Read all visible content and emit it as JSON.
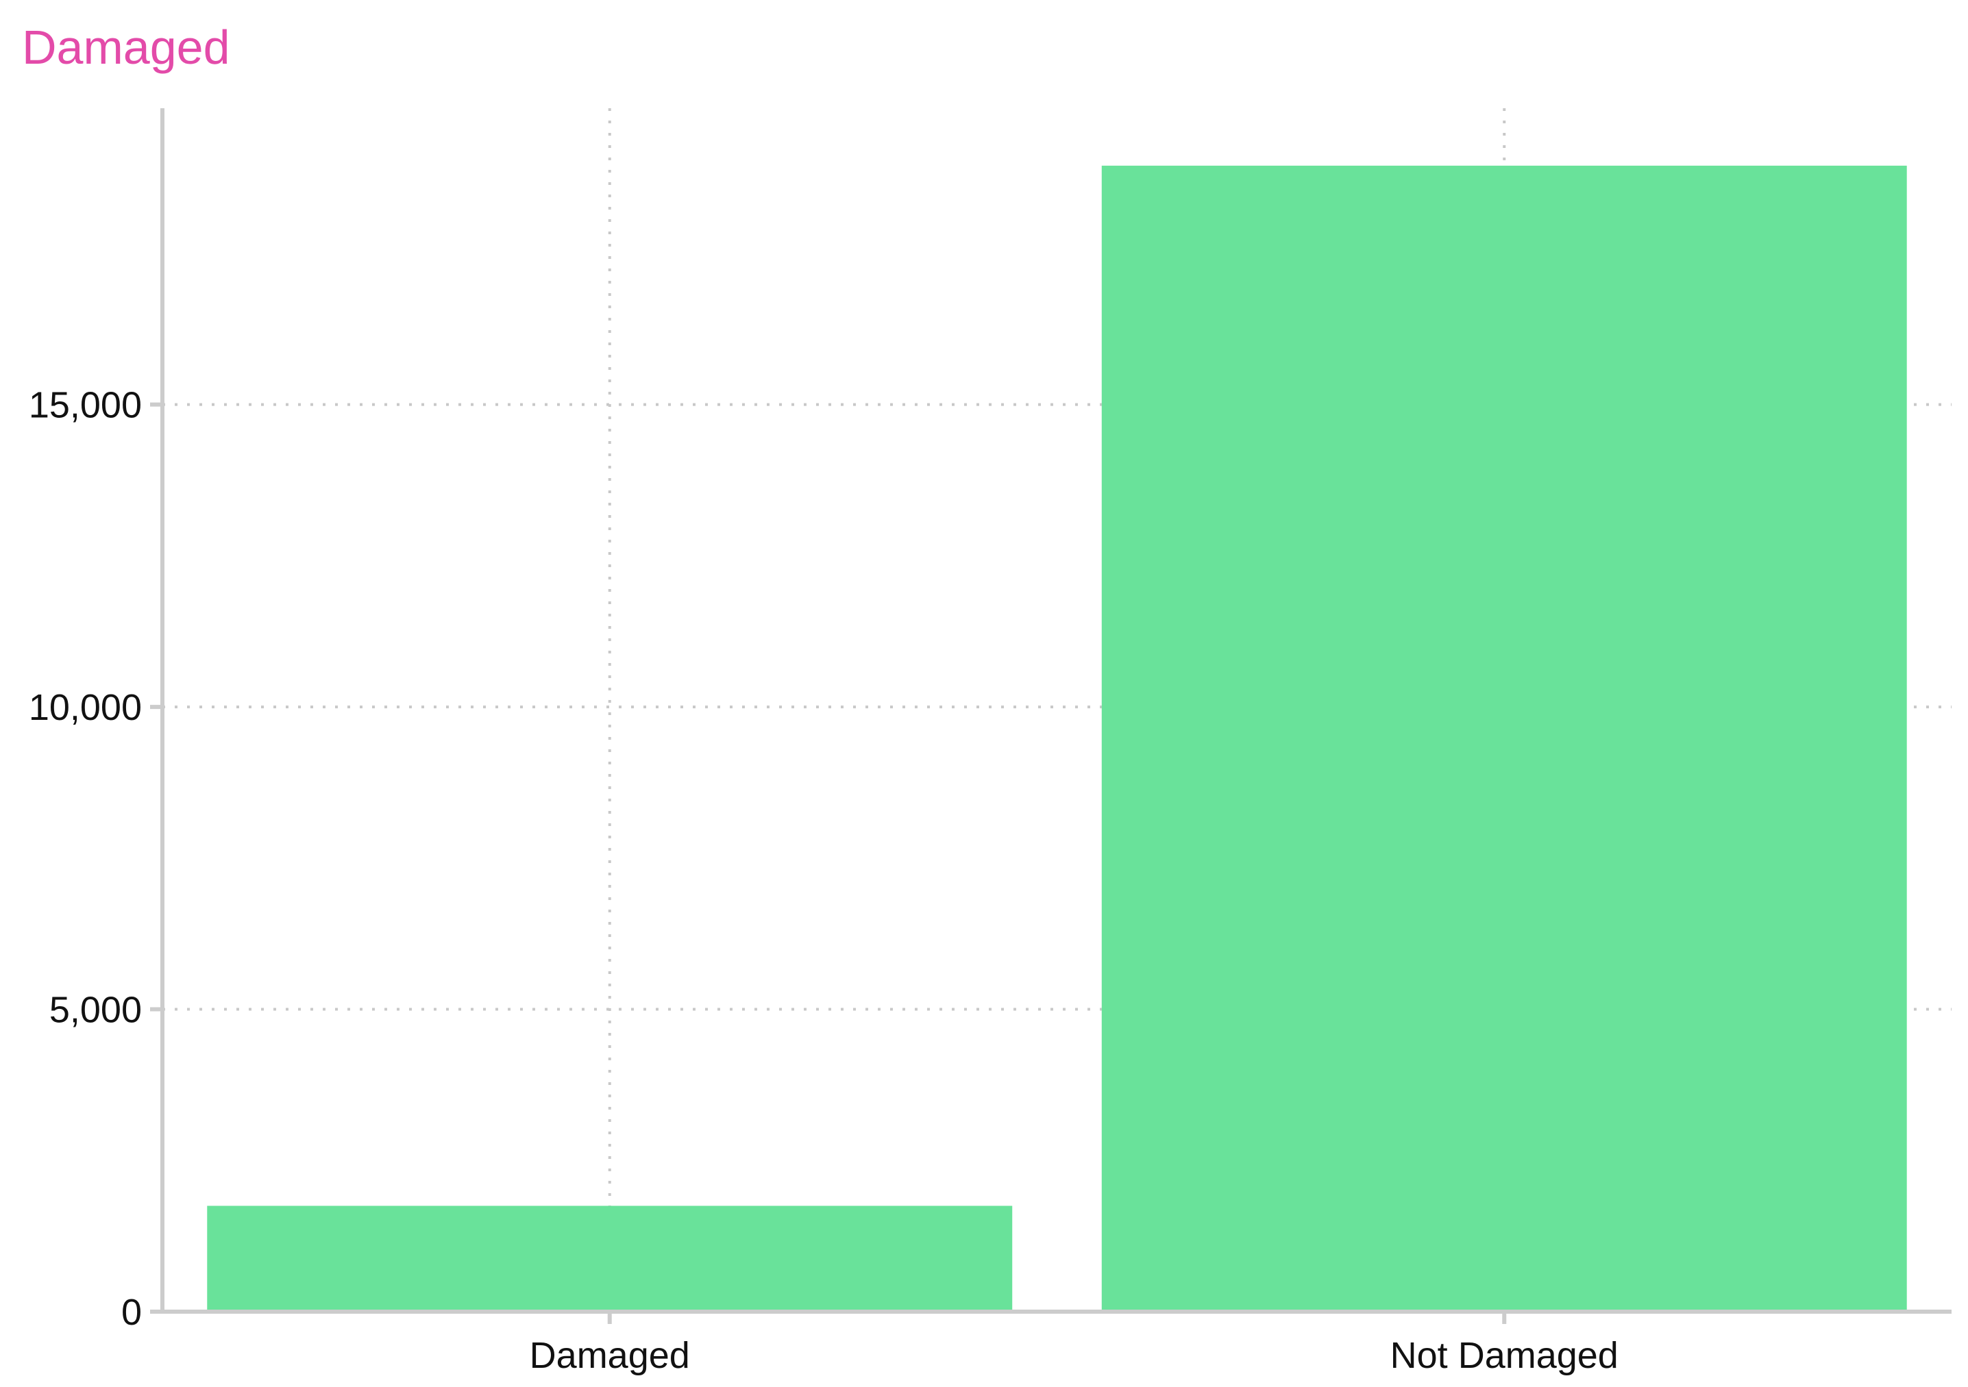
{
  "chart_data": {
    "type": "bar",
    "title": "Damaged",
    "xlabel": "",
    "ylabel": "",
    "categories": [
      "Damaged",
      "Not Damaged"
    ],
    "values": [
      1750,
      18950
    ],
    "ylim": [
      0,
      19900
    ],
    "yticks": [
      0,
      5000,
      10000,
      15000
    ],
    "ytick_labels": [
      "0",
      "5,000",
      "10,000",
      "15,000"
    ],
    "grid": true,
    "legend": "none"
  },
  "colors": {
    "title": "#e34ba9",
    "bar": "#69e29a",
    "axis": "#cccccc",
    "grid": "#c8c8c8",
    "text": "#111111"
  }
}
